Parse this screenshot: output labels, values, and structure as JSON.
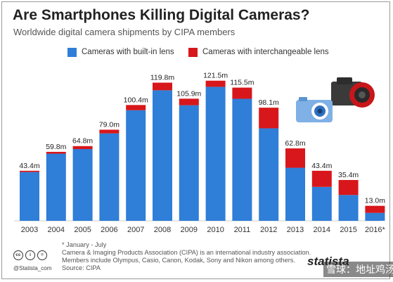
{
  "title": "Are Smartphones Killing Digital Cameras?",
  "subtitle": "Worldwide digital camera shipments by CIPA members",
  "colors": {
    "built_in": "#2f7ed8",
    "interchangeable": "#d7171b"
  },
  "chart_data": {
    "type": "bar",
    "stacked": true,
    "categories": [
      "2003",
      "2004",
      "2005",
      "2006",
      "2007",
      "2008",
      "2009",
      "2010",
      "2011",
      "2012",
      "2013",
      "2014",
      "2015",
      "2016*"
    ],
    "totals_labels": [
      "43.4m",
      "59.8m",
      "64.8m",
      "79.0m",
      "100.4m",
      "119.8m",
      "105.9m",
      "121.5m",
      "115.5m",
      "98.1m",
      "62.8m",
      "43.4m",
      "35.4m",
      "13.0m"
    ],
    "series": [
      {
        "name": "Cameras with built-in lens",
        "values": [
          42.3,
          58.2,
          62.2,
          75.8,
          95.9,
          113.2,
          100.2,
          116.2,
          105.8,
          80.2,
          46.0,
          29.4,
          22.4,
          6.9
        ]
      },
      {
        "name": "Cameras with interchangeable lens",
        "values": [
          1.1,
          1.6,
          2.6,
          3.2,
          4.5,
          6.6,
          5.7,
          5.3,
          9.7,
          17.9,
          16.8,
          14.0,
          13.0,
          6.1
        ]
      }
    ],
    "ylim": [
      0,
      130
    ],
    "grid": false,
    "legend": "top-left"
  },
  "footnotes": {
    "asterisk": "* January - July",
    "line1": "Camera & Imaging Products Association (CIPA) is an international industry association.",
    "line2": "Members include Olympus, Casio, Canon, Kodak, Sony and Nikon among others.",
    "source": "Source: CIPA"
  },
  "credit": "@Statista_com",
  "brand": "statista",
  "watermark": "雪球：地址鸡汤"
}
